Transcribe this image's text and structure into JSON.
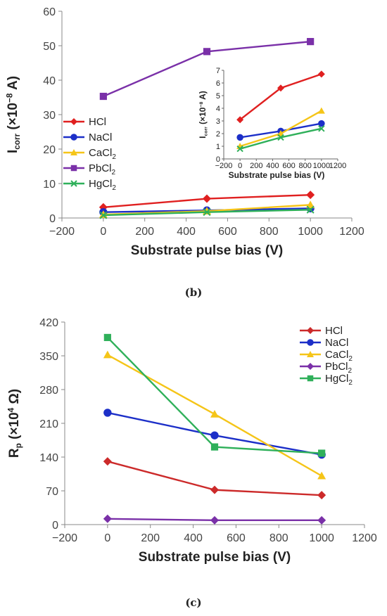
{
  "chart_data": [
    {
      "panel": "(b)",
      "type": "line",
      "xlabel": "Substrate pulse bias (V)",
      "ylabel": "Icorr (×10−8 A)",
      "ylabel_main": "I",
      "ylabel_sub": "corr",
      "ylabel_rest": " (×10",
      "ylabel_sup": "−8",
      "ylabel_unit": " A)",
      "xlim": [
        -200,
        1200
      ],
      "ylim": [
        0,
        60
      ],
      "xticks": [
        "-200",
        "0",
        "200",
        "400",
        "600",
        "800",
        "1000",
        "1200"
      ],
      "yticks": [
        "0",
        "10",
        "20",
        "30",
        "40",
        "50",
        "60"
      ],
      "x": [
        0,
        500,
        1000
      ],
      "legend_position": "left",
      "series": [
        {
          "name": "HCl",
          "label_main": "HCl",
          "label_sub": "",
          "values": [
            3.1,
            5.6,
            6.7
          ],
          "color": "#e02020",
          "marker": "diamond"
        },
        {
          "name": "NaCl",
          "label_main": "NaCl",
          "label_sub": "",
          "values": [
            1.7,
            2.2,
            2.8
          ],
          "color": "#1c2fc8",
          "marker": "circle"
        },
        {
          "name": "CaCl2",
          "label_main": "CaCl",
          "label_sub": "2",
          "values": [
            1.0,
            2.0,
            3.8
          ],
          "color": "#f5c518",
          "marker": "triangle"
        },
        {
          "name": "PbCl2",
          "label_main": "PbCl",
          "label_sub": "2",
          "values": [
            35.3,
            48.3,
            51.2
          ],
          "color": "#7a30a8",
          "marker": "square"
        },
        {
          "name": "HgCl2",
          "label_main": "HgCl",
          "label_sub": "2",
          "values": [
            0.8,
            1.7,
            2.4
          ],
          "color": "#2fb05a",
          "marker": "x"
        }
      ],
      "inset": {
        "xlabel": "Substrate pulse bias (V)",
        "ylabel_main": "I",
        "ylabel_sub": "corr",
        "ylabel_rest": " (×10",
        "ylabel_sup": "−8",
        "ylabel_unit": " A)",
        "xlim": [
          -200,
          1200
        ],
        "ylim": [
          0,
          7
        ],
        "xticks": [
          "-200",
          "0",
          "200",
          "400",
          "600",
          "800",
          "1000",
          "1200"
        ],
        "yticks": [
          "0",
          "1",
          "2",
          "3",
          "4",
          "5",
          "6",
          "7"
        ],
        "series_names": [
          "HCl",
          "NaCl",
          "CaCl2",
          "HgCl2"
        ]
      }
    },
    {
      "panel": "(c)",
      "type": "line",
      "xlabel": "Substrate pulse bias (V)",
      "ylabel": "Rp (×10⁴ Ω)",
      "ylabel_main": "R",
      "ylabel_sub": "p",
      "ylabel_rest": " (×10",
      "ylabel_sup": "4",
      "ylabel_unit": " Ω)",
      "xlim": [
        -200,
        1200
      ],
      "ylim": [
        0,
        420
      ],
      "xticks": [
        "-200",
        "0",
        "200",
        "400",
        "600",
        "800",
        "1000",
        "1200"
      ],
      "yticks": [
        "0",
        "70",
        "140",
        "210",
        "280",
        "350",
        "420"
      ],
      "x": [
        0,
        500,
        1000
      ],
      "legend_position": "top-right",
      "series": [
        {
          "name": "HCl",
          "label_main": "HCl",
          "label_sub": "",
          "values": [
            131,
            72,
            61
          ],
          "color": "#cc2a2a",
          "marker": "diamond"
        },
        {
          "name": "NaCl",
          "label_main": "NaCl",
          "label_sub": "",
          "values": [
            232,
            185,
            145
          ],
          "color": "#1c2fc8",
          "marker": "circle"
        },
        {
          "name": "CaCl2",
          "label_main": "CaCl",
          "label_sub": "2",
          "values": [
            352,
            229,
            101
          ],
          "color": "#f5c518",
          "marker": "triangle"
        },
        {
          "name": "PbCl2",
          "label_main": "PbCl",
          "label_sub": "2",
          "values": [
            12,
            9,
            9
          ],
          "color": "#7a30a8",
          "marker": "diamond"
        },
        {
          "name": "HgCl2",
          "label_main": "HgCl",
          "label_sub": "2",
          "values": [
            388,
            161,
            148
          ],
          "color": "#2fb05a",
          "marker": "square"
        }
      ]
    }
  ]
}
